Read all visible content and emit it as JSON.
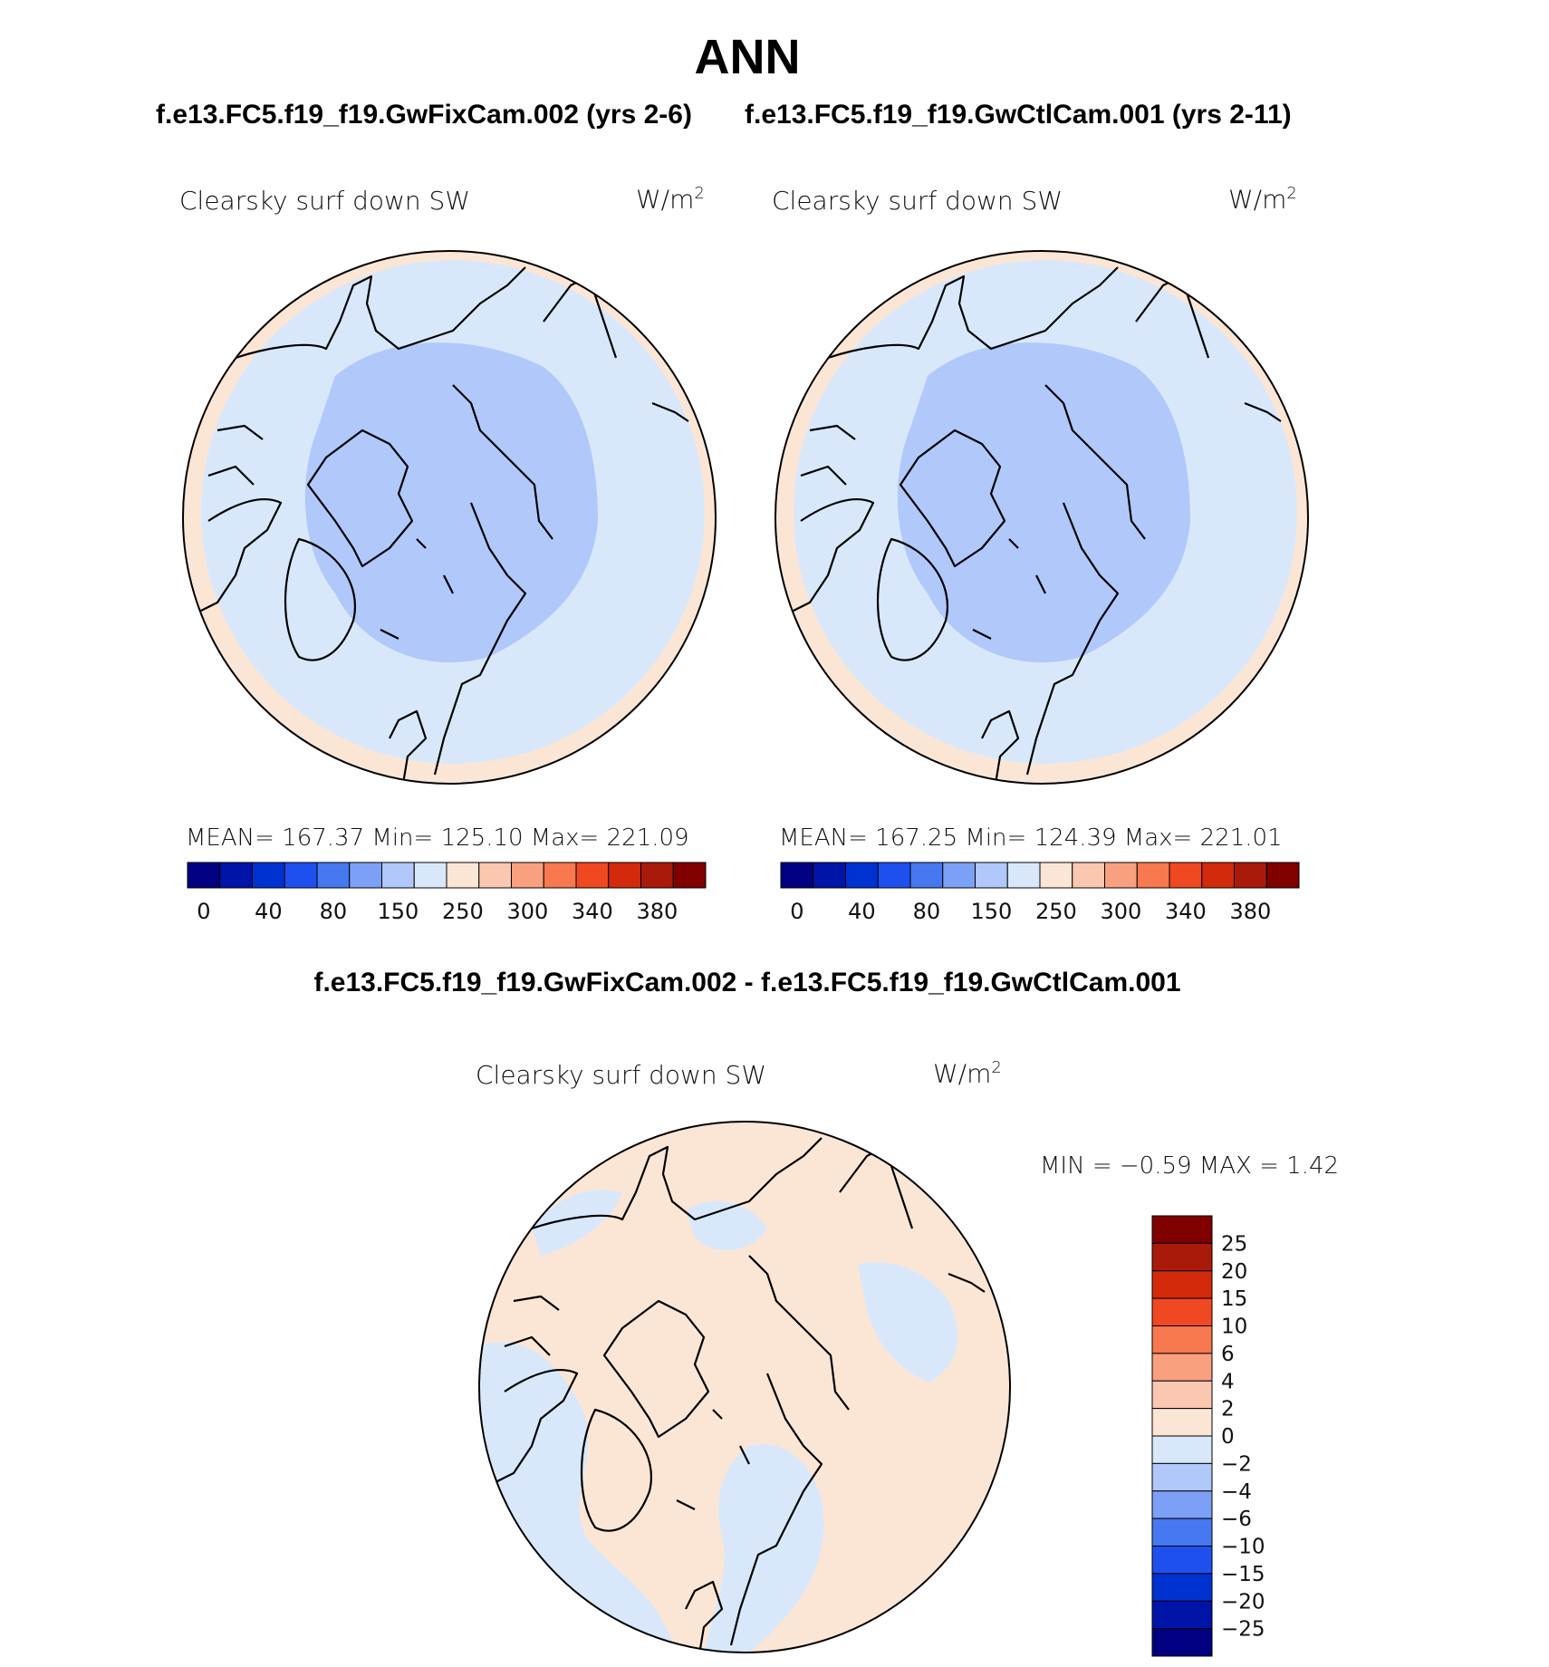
{
  "header": {
    "season": "ANN",
    "case1_title": "f.e13.FC5.f19_f19.GwFixCam.002 (yrs 2-6)",
    "case2_title": "f.e13.FC5.f19_f19.GwCtlCam.001 (yrs 2-11)",
    "diff_title": "f.e13.FC5.f19_f19.GwFixCam.002 - f.e13.FC5.f19_f19.GwCtlCam.001"
  },
  "panels": [
    {
      "variable": "Clearsky surf down SW",
      "units_base": "W/m",
      "units_exp": "2",
      "stats": "MEAN= 167.37   Min= 125.10   Max= 221.09"
    },
    {
      "variable": "Clearsky surf down SW",
      "units_base": "W/m",
      "units_exp": "2",
      "stats": "MEAN= 167.25   Min= 124.39   Max= 221.01"
    }
  ],
  "diff_panel": {
    "variable": "Clearsky surf down SW",
    "units_base": "W/m",
    "units_exp": "2",
    "stats": "MIN =   −0.59  MAX =     1.42"
  },
  "colors": {
    "main_scale": [
      "#000080",
      "#0014a8",
      "#0032d2",
      "#1e50f0",
      "#4678f0",
      "#7ca0f5",
      "#b0c8fa",
      "#d8e8fa",
      "#fbe6d6",
      "#fac8b0",
      "#f8a080",
      "#f87850",
      "#f04820",
      "#d22a0a",
      "#aa1a0a",
      "#800000"
    ],
    "diff_scale": [
      "#000080",
      "#0014a8",
      "#0032d2",
      "#1e50f0",
      "#4678f0",
      "#7ca0f5",
      "#b0c8fa",
      "#d8e8fa",
      "#fbe6d6",
      "#fac8b0",
      "#f8a080",
      "#f87850",
      "#f04820",
      "#d22a0a",
      "#aa1a0a",
      "#800000"
    ],
    "field_low": "#d8e8fa",
    "field_mid": "#b0c8fa",
    "field_high": "#fbe6d6"
  },
  "chart_data": [
    {
      "type": "heatmap",
      "title": "Clearsky surf down SW",
      "projection": "north polar stereographic",
      "colorbar_ticks": [
        "0",
        "40",
        "80",
        "150",
        "250",
        "300",
        "340",
        "380"
      ],
      "mean": 167.37,
      "min": 125.1,
      "max": 221.09
    },
    {
      "type": "heatmap",
      "title": "Clearsky surf down SW",
      "projection": "north polar stereographic",
      "colorbar_ticks": [
        "0",
        "40",
        "80",
        "150",
        "250",
        "300",
        "340",
        "380"
      ],
      "mean": 167.25,
      "min": 124.39,
      "max": 221.01
    },
    {
      "type": "heatmap",
      "title": "Clearsky surf down SW",
      "projection": "north polar stereographic",
      "colorbar_ticks": [
        "25",
        "20",
        "15",
        "10",
        "6",
        "4",
        "2",
        "0",
        "−2",
        "−4",
        "−6",
        "−10",
        "−15",
        "−20",
        "−25"
      ],
      "min": -0.59,
      "max": 1.42
    }
  ]
}
